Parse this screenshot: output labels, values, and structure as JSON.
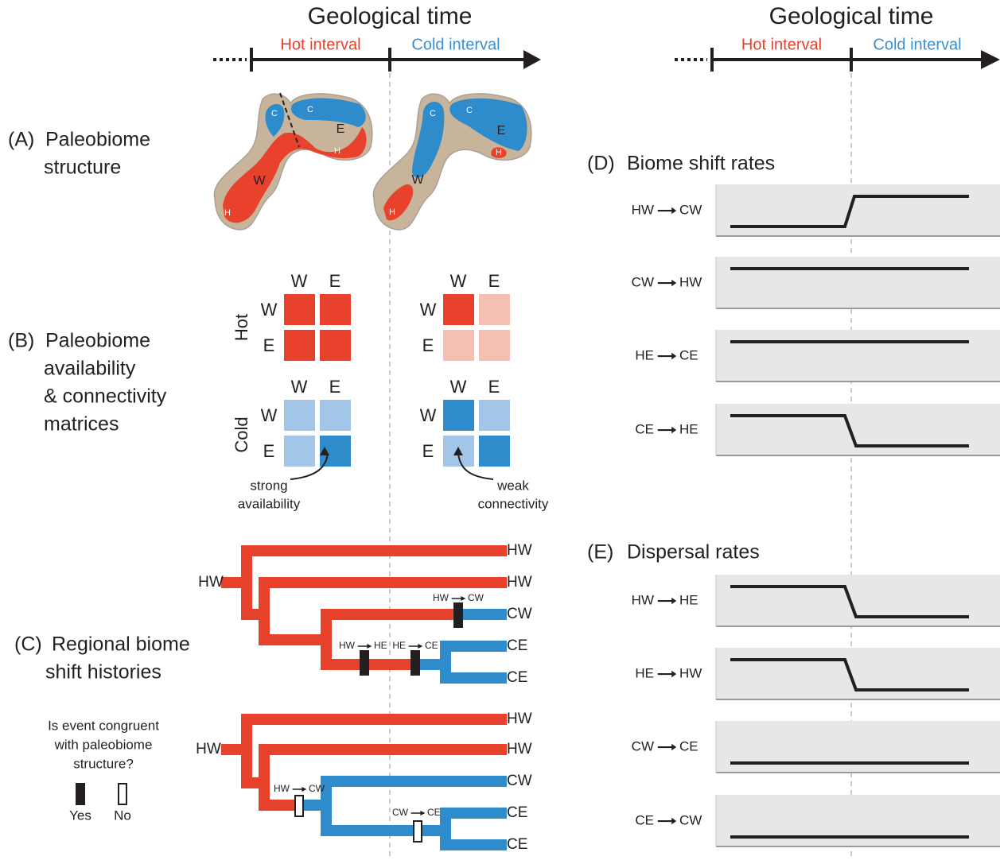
{
  "headers": [
    {
      "title": "Geological time",
      "hot": "Hot interval",
      "cold": "Cold interval"
    },
    {
      "title": "Geological time",
      "hot": "Hot interval",
      "cold": "Cold interval"
    }
  ],
  "panels": [
    {
      "letter": "(A)",
      "lines": [
        "Paleobiome",
        "structure"
      ]
    },
    {
      "letter": "(B)",
      "lines": [
        "Paleobiome",
        "availability",
        "& connectivity",
        "matrices"
      ]
    },
    {
      "letter": "(C)",
      "lines": [
        "Regional biome",
        "shift histories"
      ]
    },
    {
      "letter": "(D)",
      "lines": [
        "Biome shift rates"
      ]
    },
    {
      "letter": "(E)",
      "lines": [
        "Dispersal rates"
      ]
    }
  ],
  "maps": [
    {
      "labels": [
        "C",
        "C",
        "E",
        "H",
        "W",
        "H"
      ]
    },
    {
      "labels": [
        "C",
        "C",
        "E",
        "H",
        "W",
        "H"
      ]
    }
  ],
  "matrices": {
    "columns": [
      "W",
      "E"
    ],
    "rows": [
      "W",
      "E"
    ],
    "hot": "Hot",
    "cold": "Cold"
  },
  "annotations": [
    [
      "strong",
      "availability"
    ],
    [
      "weak",
      "connectivity"
    ]
  ],
  "trees": [
    {
      "root": "HW",
      "tips": [
        "HW",
        "HW",
        "CW",
        "CE",
        "CE"
      ],
      "events": [
        {
          "from": "HW",
          "to": "CW"
        },
        {
          "from": "HW",
          "to": "HE"
        },
        {
          "from": "HE",
          "to": "CE"
        }
      ]
    },
    {
      "root": "HW",
      "tips": [
        "HW",
        "HW",
        "CW",
        "CE",
        "CE"
      ],
      "events": [
        {
          "from": "HW",
          "to": "CW"
        },
        {
          "from": "CW",
          "to": "CE"
        }
      ]
    }
  ],
  "legend": {
    "question": [
      "Is event congruent",
      "with paleobiome",
      "structure?"
    ],
    "yes": "Yes",
    "no": "No"
  },
  "rates": [
    {
      "items": [
        {
          "from": "HW",
          "to": "CW"
        },
        {
          "from": "CW",
          "to": "HW"
        },
        {
          "from": "HE",
          "to": "CE"
        },
        {
          "from": "CE",
          "to": "HE"
        }
      ]
    },
    {
      "items": [
        {
          "from": "HW",
          "to": "HE"
        },
        {
          "from": "HE",
          "to": "HW"
        },
        {
          "from": "CW",
          "to": "CE"
        },
        {
          "from": "CE",
          "to": "CW"
        }
      ]
    }
  ]
}
